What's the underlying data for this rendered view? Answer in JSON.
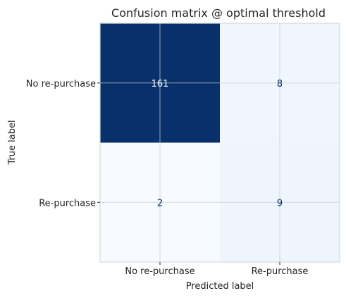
{
  "chart_data": {
    "type": "heatmap",
    "title": "Confusion matrix @ optimal threshold",
    "xlabel": "Predicted label",
    "ylabel": "True label",
    "x_categories": [
      "No re-purchase",
      "Re-purchase"
    ],
    "y_categories": [
      "No re-purchase",
      "Re-purchase"
    ],
    "matrix": [
      [
        161,
        8
      ],
      [
        2,
        9
      ]
    ],
    "colormap": "Blues",
    "colors": {
      "low": "#f7fbff",
      "high": "#08306b",
      "dark_text": "#08306b",
      "light_text": "#f7fbff"
    },
    "grid": true
  }
}
